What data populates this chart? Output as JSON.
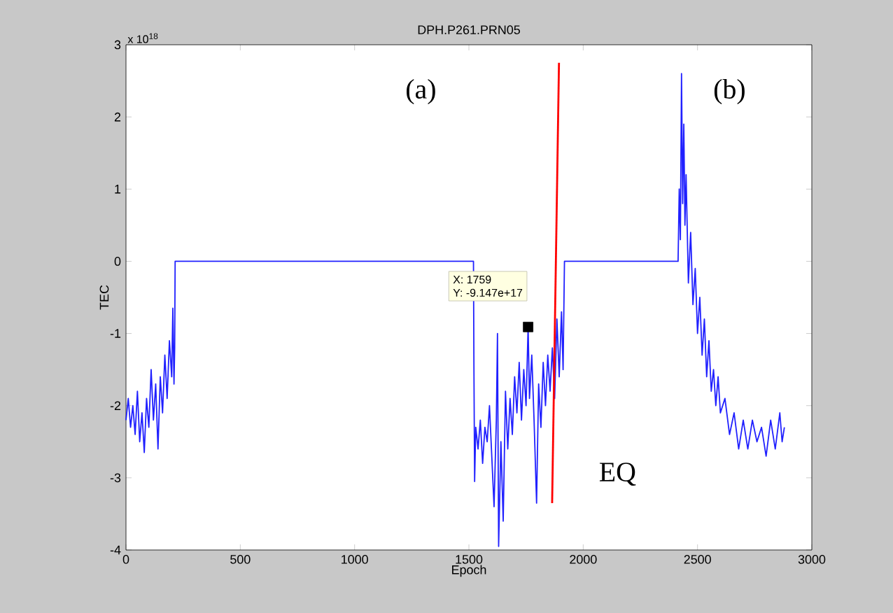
{
  "chart_data": {
    "type": "line",
    "title": "DPH.P261.PRN05",
    "xlabel": "Epoch",
    "ylabel": "TEC",
    "xlim": [
      0,
      3000
    ],
    "xticks": [
      0,
      500,
      1000,
      1500,
      2000,
      2500,
      3000
    ],
    "ylim": [
      -4,
      3
    ],
    "yticks": [
      -4,
      -3,
      -2,
      -1,
      0,
      1,
      2,
      3
    ],
    "grid": false,
    "marker": "none",
    "line_style": "solid",
    "series": [
      {
        "color": "#2020ff",
        "x": [
          0,
          10,
          20,
          30,
          40,
          50,
          60,
          70,
          80,
          90,
          100,
          110,
          120,
          130,
          140,
          150,
          160,
          170,
          180,
          190,
          200,
          205,
          210,
          213,
          215,
          1520,
          1522,
          1525,
          1530,
          1540,
          1550,
          1560,
          1570,
          1580,
          1590,
          1600,
          1610,
          1620,
          1625,
          1630,
          1640,
          1650,
          1660,
          1670,
          1680,
          1690,
          1700,
          1710,
          1720,
          1730,
          1740,
          1750,
          1759,
          1765,
          1775,
          1785,
          1796,
          1805,
          1815,
          1825,
          1835,
          1845,
          1855,
          1865,
          1875,
          1885,
          1895,
          1905,
          1912,
          1918,
          2415,
          2420,
          2425,
          2430,
          2435,
          2440,
          2445,
          2450,
          2460,
          2470,
          2480,
          2490,
          2500,
          2510,
          2520,
          2530,
          2540,
          2550,
          2560,
          2570,
          2580,
          2590,
          2600,
          2620,
          2640,
          2660,
          2680,
          2700,
          2720,
          2740,
          2760,
          2780,
          2800,
          2820,
          2840,
          2860,
          2870,
          2880
        ],
        "values": [
          -2.2,
          -1.9,
          -2.3,
          -2.0,
          -2.4,
          -1.8,
          -2.5,
          -2.1,
          -2.65,
          -1.9,
          -2.3,
          -1.5,
          -2.2,
          -1.7,
          -2.6,
          -1.6,
          -2.1,
          -1.3,
          -1.9,
          -1.1,
          -1.6,
          -0.65,
          -1.7,
          -1.2,
          0,
          0,
          -1.5,
          -3.05,
          -2.3,
          -2.6,
          -2.2,
          -2.8,
          -2.3,
          -2.5,
          -2.0,
          -2.7,
          -3.4,
          -2.2,
          -1.0,
          -3.95,
          -2.5,
          -3.6,
          -1.8,
          -2.6,
          -1.9,
          -2.4,
          -1.6,
          -2.1,
          -1.4,
          -2.2,
          -1.5,
          -2.0,
          -0.91,
          -1.9,
          -1.3,
          -2.2,
          -3.35,
          -1.7,
          -2.3,
          -1.4,
          -2.0,
          -1.3,
          -1.8,
          -1.2,
          -1.9,
          -0.8,
          -1.6,
          -0.7,
          -1.5,
          0,
          0,
          1.0,
          0.3,
          2.6,
          0.8,
          1.9,
          0.5,
          1.2,
          -0.3,
          0.4,
          -0.6,
          -0.1,
          -1.0,
          -0.5,
          -1.3,
          -0.8,
          -1.6,
          -1.1,
          -1.8,
          -1.5,
          -2.0,
          -1.6,
          -2.1,
          -1.9,
          -2.4,
          -2.1,
          -2.6,
          -2.2,
          -2.6,
          -2.2,
          -2.5,
          -2.3,
          -2.7,
          -2.2,
          -2.6,
          -2.1,
          -2.5,
          -2.3
        ]
      },
      {
        "color": "#ff0000",
        "x": [
          1864,
          1894
        ],
        "values": [
          -3.35,
          2.75
        ]
      },
      {
        "type": "scatter",
        "marker": "square",
        "color": "#000000",
        "x": [
          1759
        ],
        "values": [
          -0.91
        ]
      }
    ],
    "annotations": [
      "x 10$^{18}$",
      "(a)",
      "(b)",
      "EQ",
      "X: 1759",
      "Y: -9.147e+17"
    ]
  }
}
